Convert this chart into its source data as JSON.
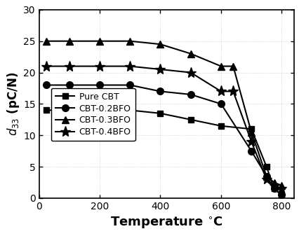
{
  "series": [
    {
      "label": "Pure CBT",
      "marker": "s",
      "x": [
        25,
        100,
        200,
        300,
        400,
        500,
        600,
        700,
        750,
        775,
        800
      ],
      "y": [
        14,
        14,
        14,
        14,
        13.5,
        12.5,
        11.5,
        11,
        5,
        1.5,
        0.5
      ]
    },
    {
      "label": "CBT-0.2BFO",
      "marker": "o",
      "x": [
        25,
        100,
        200,
        300,
        400,
        500,
        600,
        700,
        750,
        775,
        800
      ],
      "y": [
        18,
        18,
        18,
        18,
        17,
        16.5,
        15,
        7.5,
        3.5,
        1.5,
        0.5
      ]
    },
    {
      "label": "CBT-0.3BFO",
      "marker": "^",
      "x": [
        25,
        100,
        200,
        300,
        400,
        500,
        600,
        640,
        700,
        750,
        775,
        800
      ],
      "y": [
        25,
        25,
        25,
        25,
        24.5,
        23,
        21,
        21,
        10.5,
        3.5,
        2.5,
        2.0
      ]
    },
    {
      "label": "CBT-0.4BFO",
      "marker": "*",
      "x": [
        25,
        100,
        200,
        300,
        400,
        500,
        600,
        640,
        700,
        750,
        775,
        800
      ],
      "y": [
        21,
        21,
        21,
        21,
        20.5,
        20,
        17,
        17,
        9,
        3,
        2,
        1.5
      ]
    }
  ],
  "xlabel": "Temperature $^{\\circ}$C",
  "ylabel": "$d_{33}$ (pC/N)",
  "xlim": [
    0,
    840
  ],
  "ylim": [
    0,
    30
  ],
  "xticks": [
    0,
    200,
    400,
    600,
    800
  ],
  "yticks": [
    0,
    5,
    10,
    15,
    20,
    25,
    30
  ],
  "legend_loc": "center left",
  "color": "black",
  "linewidth": 1.5,
  "figsize": [
    4.27,
    3.37
  ],
  "dpi": 100,
  "bg_color": "#e8e8e8",
  "markersizes": [
    6,
    7,
    7,
    11
  ]
}
